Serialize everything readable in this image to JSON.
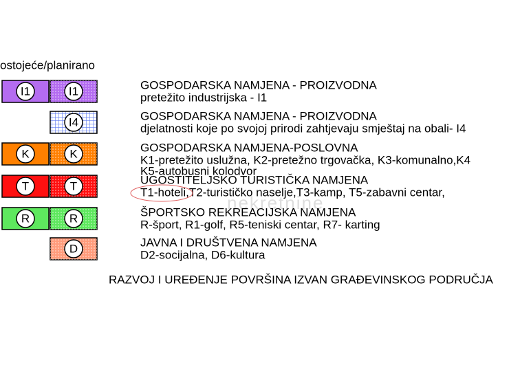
{
  "legend": {
    "header": "ostojeće/planirano",
    "rows": [
      {
        "existing": "I1",
        "planned": "I1",
        "color": "#b46cf0",
        "title": "GOSPODARSKA NAMJENA - PROIZVODNA",
        "lines": [
          "pretežito industrijska - I1"
        ]
      },
      {
        "planned": "I4",
        "color": "#5a78f0",
        "pattern": "grid",
        "title": "GOSPODARSKA NAMJENA - PROIZVODNA",
        "lines": [
          "djelatnosti koje po svojoj prirodi zahtjevaju smještaj na obali- I4"
        ]
      },
      {
        "existing": "K",
        "planned": "K",
        "color": "#ff8000",
        "title": "GOSPODARSKA NAMJENA-POSLOVNA",
        "lines": [
          "K1-pretežito uslužna, K2-pretežno trgovačka, K3-komunalno,K4",
          "K5-autobusni kolodvor"
        ]
      },
      {
        "existing": "T",
        "planned": "T",
        "color": "#ff1010",
        "title": "UGOSTITELJSKO TURISTIČKA NAMJENA",
        "lines": [
          "T1-hoteli,T2-turističko naselje,T3-kamp, T5-zabavni centar,"
        ]
      },
      {
        "existing": "R",
        "planned": "R",
        "color": "#5ee85e",
        "title": "ŠPORTSKO REKREACIJSKA NAMJENA",
        "lines": [
          "R-šport, R1-golf, R5-teniski centar, R7- karting"
        ]
      },
      {
        "planned": "D",
        "color": "#ff9c7c",
        "title": "JAVNA I DRUŠTVENA NAMJENA",
        "lines": [
          "D2-socijalna, D6-kultura"
        ]
      }
    ],
    "footer": "RAZVOJ I UREĐENJE POVRŠINA IZVAN GRAĐEVINSKOG PODRUČJA",
    "watermark": "nekretnine"
  }
}
